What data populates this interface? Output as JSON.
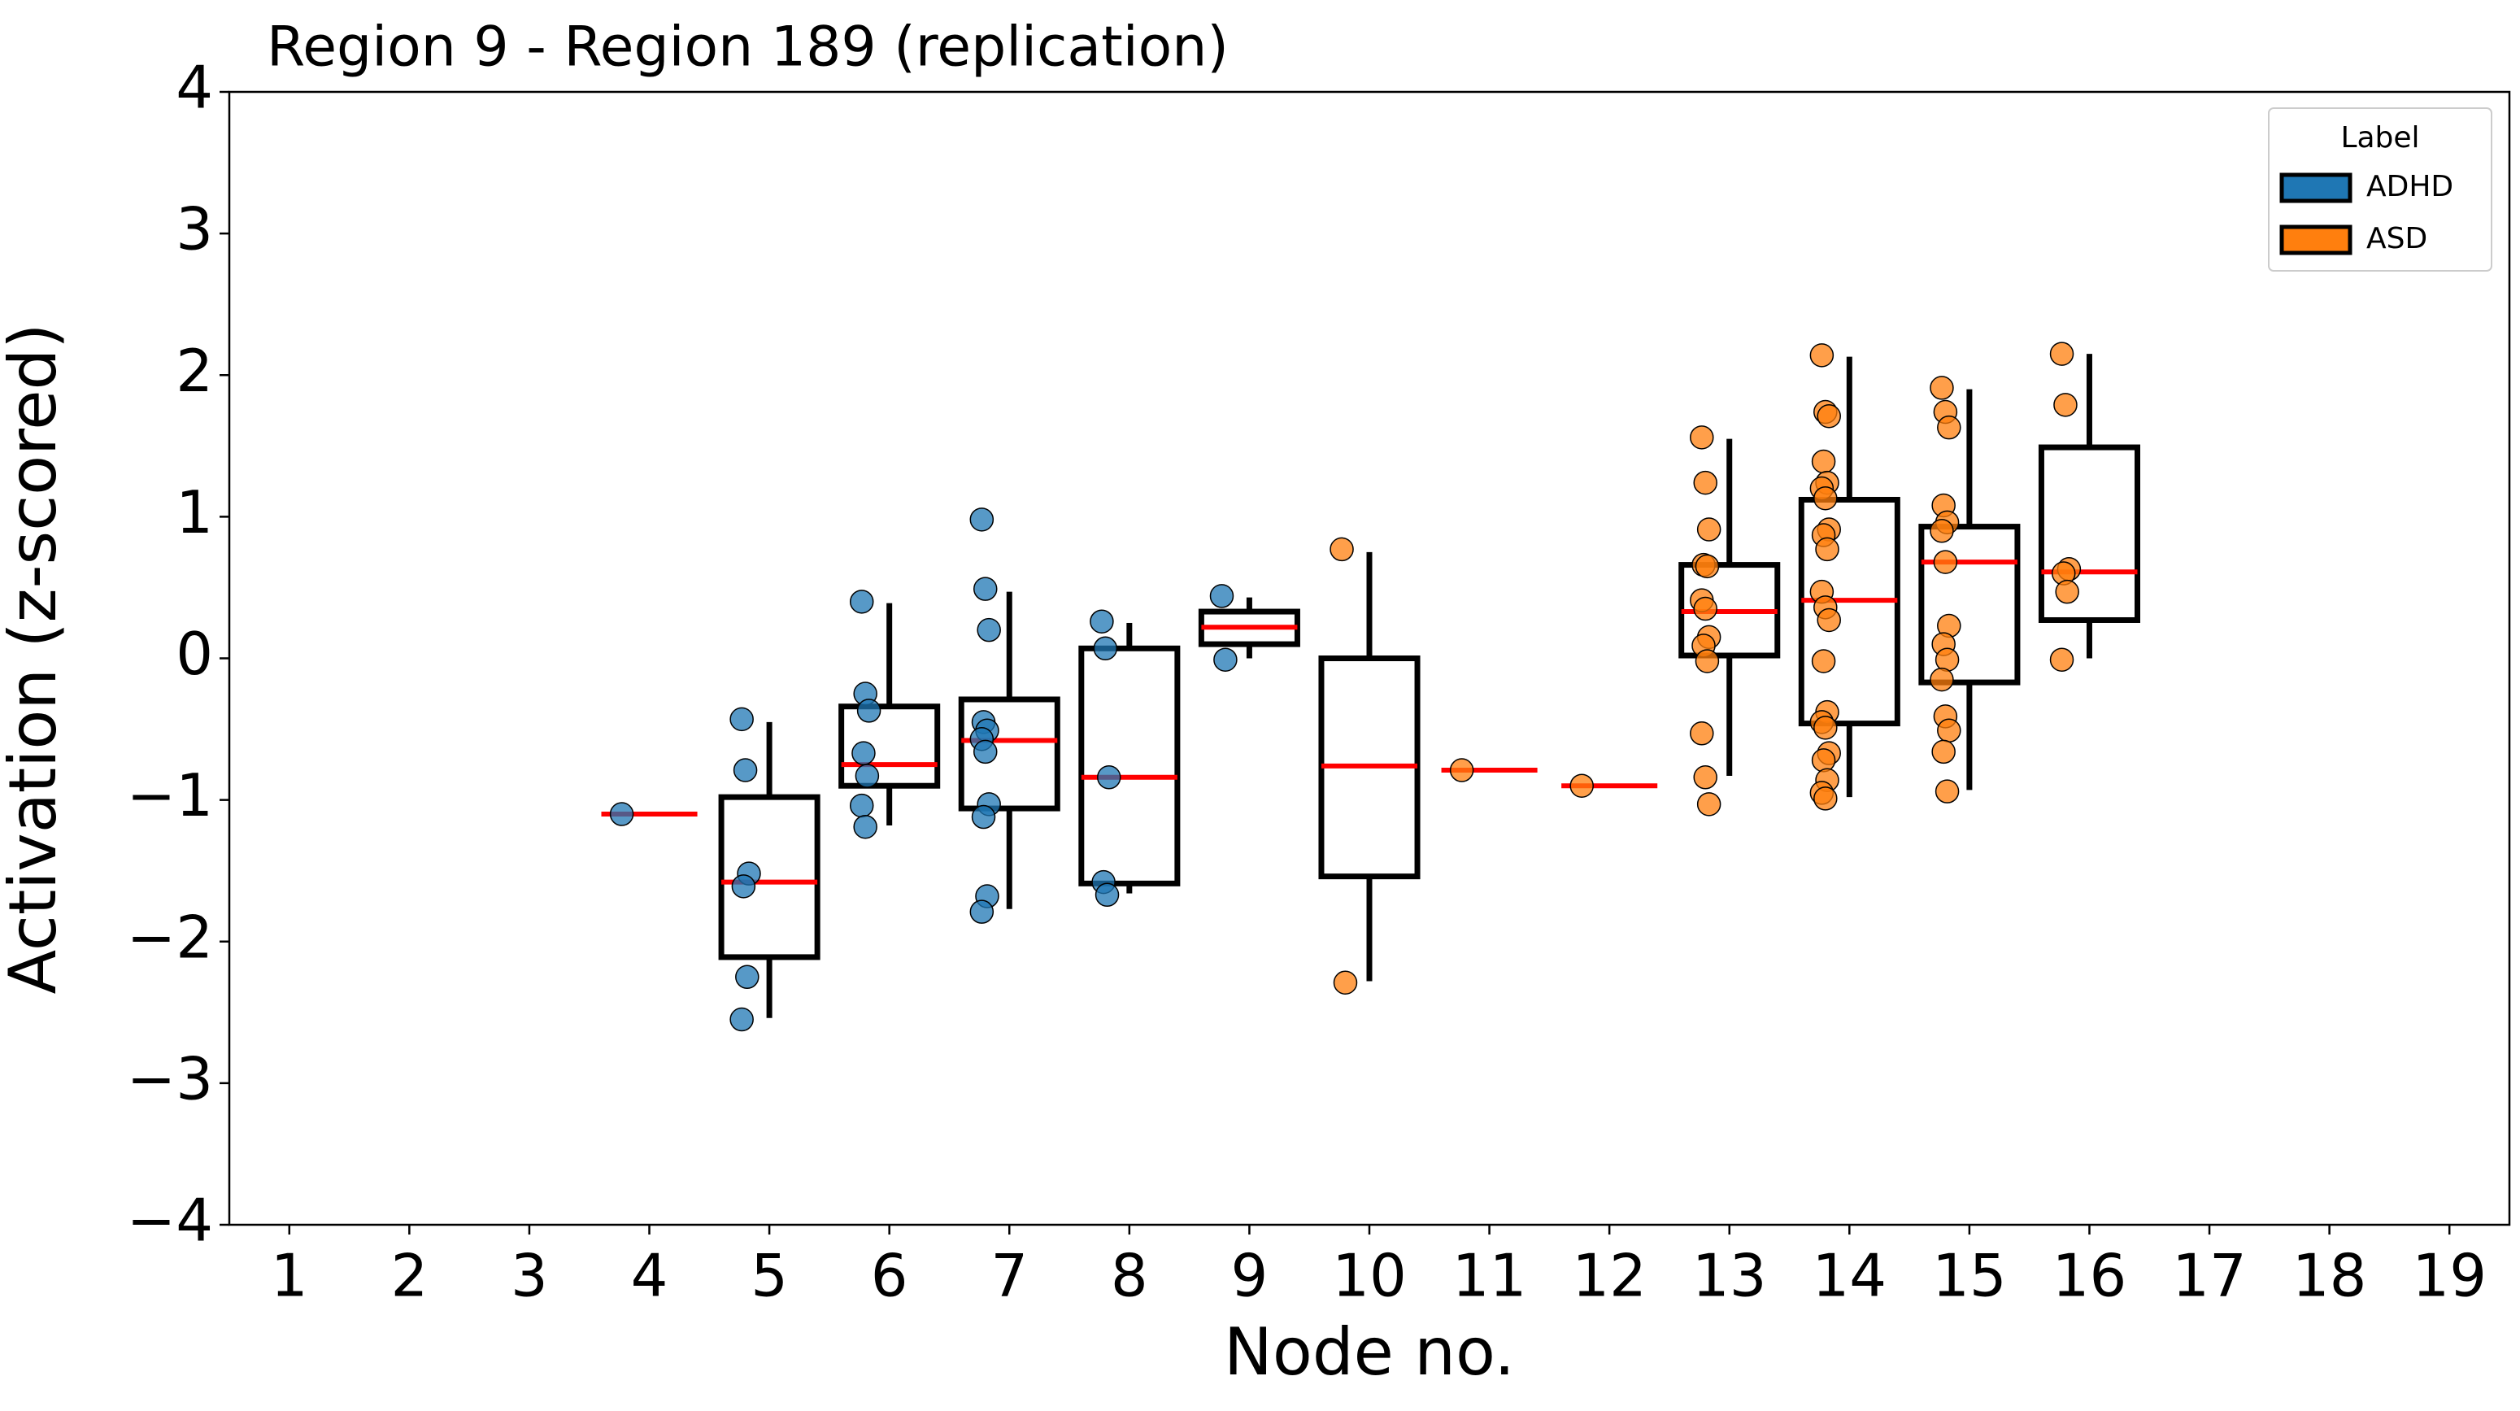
{
  "chart_data": {
    "type": "box",
    "title": "Region 9 - Region 189 (replication)",
    "x_label": "Node no.",
    "y_label": "Activation (z-scored)",
    "xlim": [
      0.5,
      19.5
    ],
    "xticks": [
      1,
      2,
      3,
      4,
      5,
      6,
      7,
      8,
      9,
      10,
      11,
      12,
      13,
      14,
      15,
      16,
      17,
      18,
      19
    ],
    "ylim": [
      -4,
      4
    ],
    "yticks": [
      {
        "value": -4,
        "label": "−4"
      },
      {
        "value": -3,
        "label": "−3"
      },
      {
        "value": -2,
        "label": "−2"
      },
      {
        "value": -1,
        "label": "−1"
      },
      0,
      1,
      2,
      3,
      4
    ],
    "median_color": "#ff0000",
    "legend_title": "Label",
    "legend_loc": "upper right",
    "series": [
      {
        "name": "ADHD",
        "color": "#1f77b4",
        "boxes": [
          {
            "x": 4,
            "median": -1.1,
            "points": [
              -1.1
            ]
          },
          {
            "x": 5,
            "q1": -2.11,
            "median": -1.58,
            "q3": -0.98,
            "whislo": -2.54,
            "whishi": -0.45,
            "points": [
              -0.43,
              -0.79,
              -1.52,
              -1.61,
              -2.25,
              -2.55
            ]
          },
          {
            "x": 6,
            "q1": -0.9,
            "median": -0.75,
            "q3": -0.34,
            "whislo": -1.18,
            "whishi": 0.39,
            "points": [
              0.4,
              -0.25,
              -0.37,
              -0.67,
              -0.83,
              -1.04,
              -1.19
            ]
          },
          {
            "x": 7,
            "q1": -1.06,
            "median": -0.58,
            "q3": -0.29,
            "whislo": -1.77,
            "whishi": 0.47,
            "points": [
              0.98,
              0.49,
              0.2,
              -0.45,
              -0.51,
              -0.57,
              -0.66,
              -1.03,
              -1.12,
              -1.68,
              -1.79
            ]
          },
          {
            "x": 8,
            "q1": -1.59,
            "median": -0.84,
            "q3": 0.07,
            "whislo": -1.66,
            "whishi": 0.25,
            "points": [
              0.26,
              0.07,
              -0.84,
              -1.58,
              -1.67
            ]
          },
          {
            "x": 9,
            "q1": 0.1,
            "median": 0.22,
            "q3": 0.33,
            "whislo": 0,
            "whishi": 0.43,
            "points": [
              0.44,
              -0.01
            ]
          }
        ]
      },
      {
        "name": "ASD",
        "color": "#ff7f0e",
        "boxes": [
          {
            "x": 10,
            "q1": -1.54,
            "median": -0.76,
            "q3": 0,
            "whislo": -2.28,
            "whishi": 0.75,
            "points": [
              0.77,
              -2.29
            ]
          },
          {
            "x": 11,
            "median": -0.79,
            "points": [
              -0.79
            ]
          },
          {
            "x": 12,
            "median": -0.9,
            "points": [
              -0.9
            ]
          },
          {
            "x": 13,
            "q1": 0.02,
            "median": 0.33,
            "q3": 0.66,
            "whislo": -0.83,
            "whishi": 1.55,
            "points": [
              1.56,
              1.24,
              0.91,
              0.66,
              0.65,
              0.41,
              0.35,
              0.15,
              0.09,
              -0.02,
              -0.53,
              -0.84,
              -1.03
            ]
          },
          {
            "x": 14,
            "q1": -0.46,
            "median": 0.41,
            "q3": 1.12,
            "whislo": -0.98,
            "whishi": 2.13,
            "points": [
              2.14,
              1.74,
              1.71,
              1.39,
              1.24,
              1.2,
              1.13,
              0.91,
              0.87,
              0.77,
              0.47,
              0.36,
              0.27,
              -0.02,
              -0.38,
              -0.45,
              -0.49,
              -0.67,
              -0.72,
              -0.86,
              -0.95,
              -0.99
            ]
          },
          {
            "x": 15,
            "q1": -0.17,
            "median": 0.68,
            "q3": 0.93,
            "whislo": -0.93,
            "whishi": 1.9,
            "points": [
              1.91,
              1.74,
              1.63,
              1.08,
              0.96,
              0.9,
              0.68,
              0.23,
              0.1,
              -0.01,
              -0.15,
              -0.41,
              -0.51,
              -0.66,
              -0.94
            ]
          },
          {
            "x": 16,
            "q1": 0.27,
            "median": 0.61,
            "q3": 1.49,
            "whislo": 0,
            "whishi": 2.15,
            "points": [
              2.15,
              1.79,
              0.63,
              0.6,
              0.47,
              -0.01
            ]
          }
        ]
      }
    ]
  }
}
